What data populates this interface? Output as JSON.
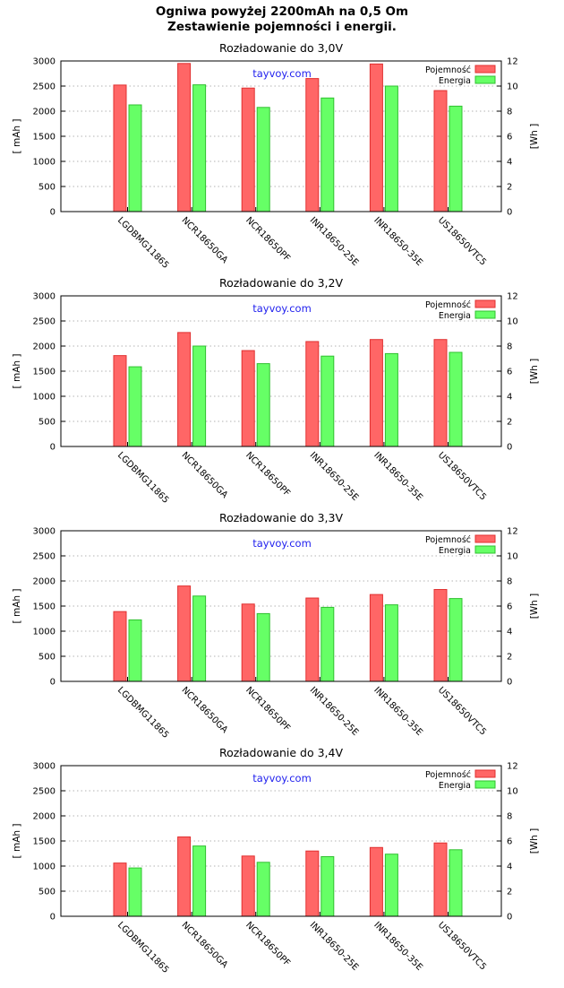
{
  "page_title": {
    "line1": "Ogniwa powyżej 2200mAh na 0,5 Om",
    "line2": "Zestawienie pojemności i energii."
  },
  "colors": {
    "capacity": "#ff6666",
    "capacity_stroke": "#e03030",
    "energy": "#66ff66",
    "energy_stroke": "#30c030",
    "watermark": "#2222ee"
  },
  "chart_data": [
    {
      "type": "bar",
      "title": "Rozładowanie do 3,0V",
      "watermark": "tayvoy.com",
      "ylabel": "[ mAh ]",
      "y2label": "[Wh ]",
      "ylim": [
        0,
        3000
      ],
      "y2lim": [
        0,
        12
      ],
      "yticks": [
        "0",
        "500",
        "1000",
        "1500",
        "2000",
        "2500",
        "3000"
      ],
      "y2ticks": [
        "0",
        "2",
        "4",
        "6",
        "8",
        "10",
        "12"
      ],
      "grid": true,
      "legend_position": "top-right",
      "categories": [
        "LGDBMG11865",
        "NCR18650GA",
        "NCR18650PF",
        "INR18650-25E",
        "INR18650-35E",
        "US18650VTC5"
      ],
      "series": [
        {
          "name": "Pojemność",
          "axis": "left",
          "values": [
            2520,
            2950,
            2460,
            2650,
            2940,
            2410
          ]
        },
        {
          "name": "Energia",
          "axis": "right",
          "values": [
            8.5,
            10.1,
            8.3,
            9.05,
            10.0,
            8.4
          ]
        }
      ]
    },
    {
      "type": "bar",
      "title": "Rozładowanie do 3,2V",
      "watermark": "tayvoy.com",
      "ylabel": "[ mAh ]",
      "y2label": "[Wh ]",
      "ylim": [
        0,
        3000
      ],
      "y2lim": [
        0,
        12
      ],
      "yticks": [
        "0",
        "500",
        "1000",
        "1500",
        "2000",
        "2500",
        "3000"
      ],
      "y2ticks": [
        "0",
        "2",
        "4",
        "6",
        "8",
        "10",
        "12"
      ],
      "grid": true,
      "legend_position": "top-right",
      "categories": [
        "LGDBMG11865",
        "NCR18650GA",
        "NCR18650PF",
        "INR18650-25E",
        "INR18650-35E",
        "US18650VTC5"
      ],
      "series": [
        {
          "name": "Pojemność",
          "axis": "left",
          "values": [
            1810,
            2270,
            1910,
            2090,
            2130,
            2130
          ]
        },
        {
          "name": "Energia",
          "axis": "right",
          "values": [
            6.35,
            8.0,
            6.6,
            7.2,
            7.4,
            7.5
          ]
        }
      ]
    },
    {
      "type": "bar",
      "title": "Rozładowanie do 3,3V",
      "watermark": "tayvoy.com",
      "ylabel": "[ mAh ]",
      "y2label": "[Wh ]",
      "ylim": [
        0,
        3000
      ],
      "y2lim": [
        0,
        12
      ],
      "yticks": [
        "0",
        "500",
        "1000",
        "1500",
        "2000",
        "2500",
        "3000"
      ],
      "y2ticks": [
        "0",
        "2",
        "4",
        "6",
        "8",
        "10",
        "12"
      ],
      "grid": true,
      "legend_position": "top-right",
      "categories": [
        "LGDBMG11865",
        "NCR18650GA",
        "NCR18650PF",
        "INR18650-25E",
        "INR18650-35E",
        "US18650VTC5"
      ],
      "series": [
        {
          "name": "Pojemność",
          "axis": "left",
          "values": [
            1390,
            1900,
            1540,
            1660,
            1730,
            1830
          ]
        },
        {
          "name": "Energia",
          "axis": "right",
          "values": [
            4.9,
            6.8,
            5.4,
            5.9,
            6.1,
            6.6
          ]
        }
      ]
    },
    {
      "type": "bar",
      "title": "Rozładowanie do 3,4V",
      "watermark": "tayvoy.com",
      "ylabel": "[ mAh ]",
      "y2label": "[Wh ]",
      "ylim": [
        0,
        3000
      ],
      "y2lim": [
        0,
        12
      ],
      "yticks": [
        "0",
        "500",
        "1000",
        "1500",
        "2000",
        "2500",
        "3000"
      ],
      "y2ticks": [
        "0",
        "2",
        "4",
        "6",
        "8",
        "10",
        "12"
      ],
      "grid": true,
      "legend_position": "top-right",
      "categories": [
        "LGDBMG11865",
        "NCR18650GA",
        "NCR18650PF",
        "INR18650-25E",
        "INR18650-35E",
        "US18650VTC5"
      ],
      "series": [
        {
          "name": "Pojemność",
          "axis": "left",
          "values": [
            1060,
            1580,
            1200,
            1300,
            1370,
            1460
          ]
        },
        {
          "name": "Energia",
          "axis": "right",
          "values": [
            3.85,
            5.6,
            4.3,
            4.75,
            4.95,
            5.3
          ]
        }
      ]
    }
  ]
}
